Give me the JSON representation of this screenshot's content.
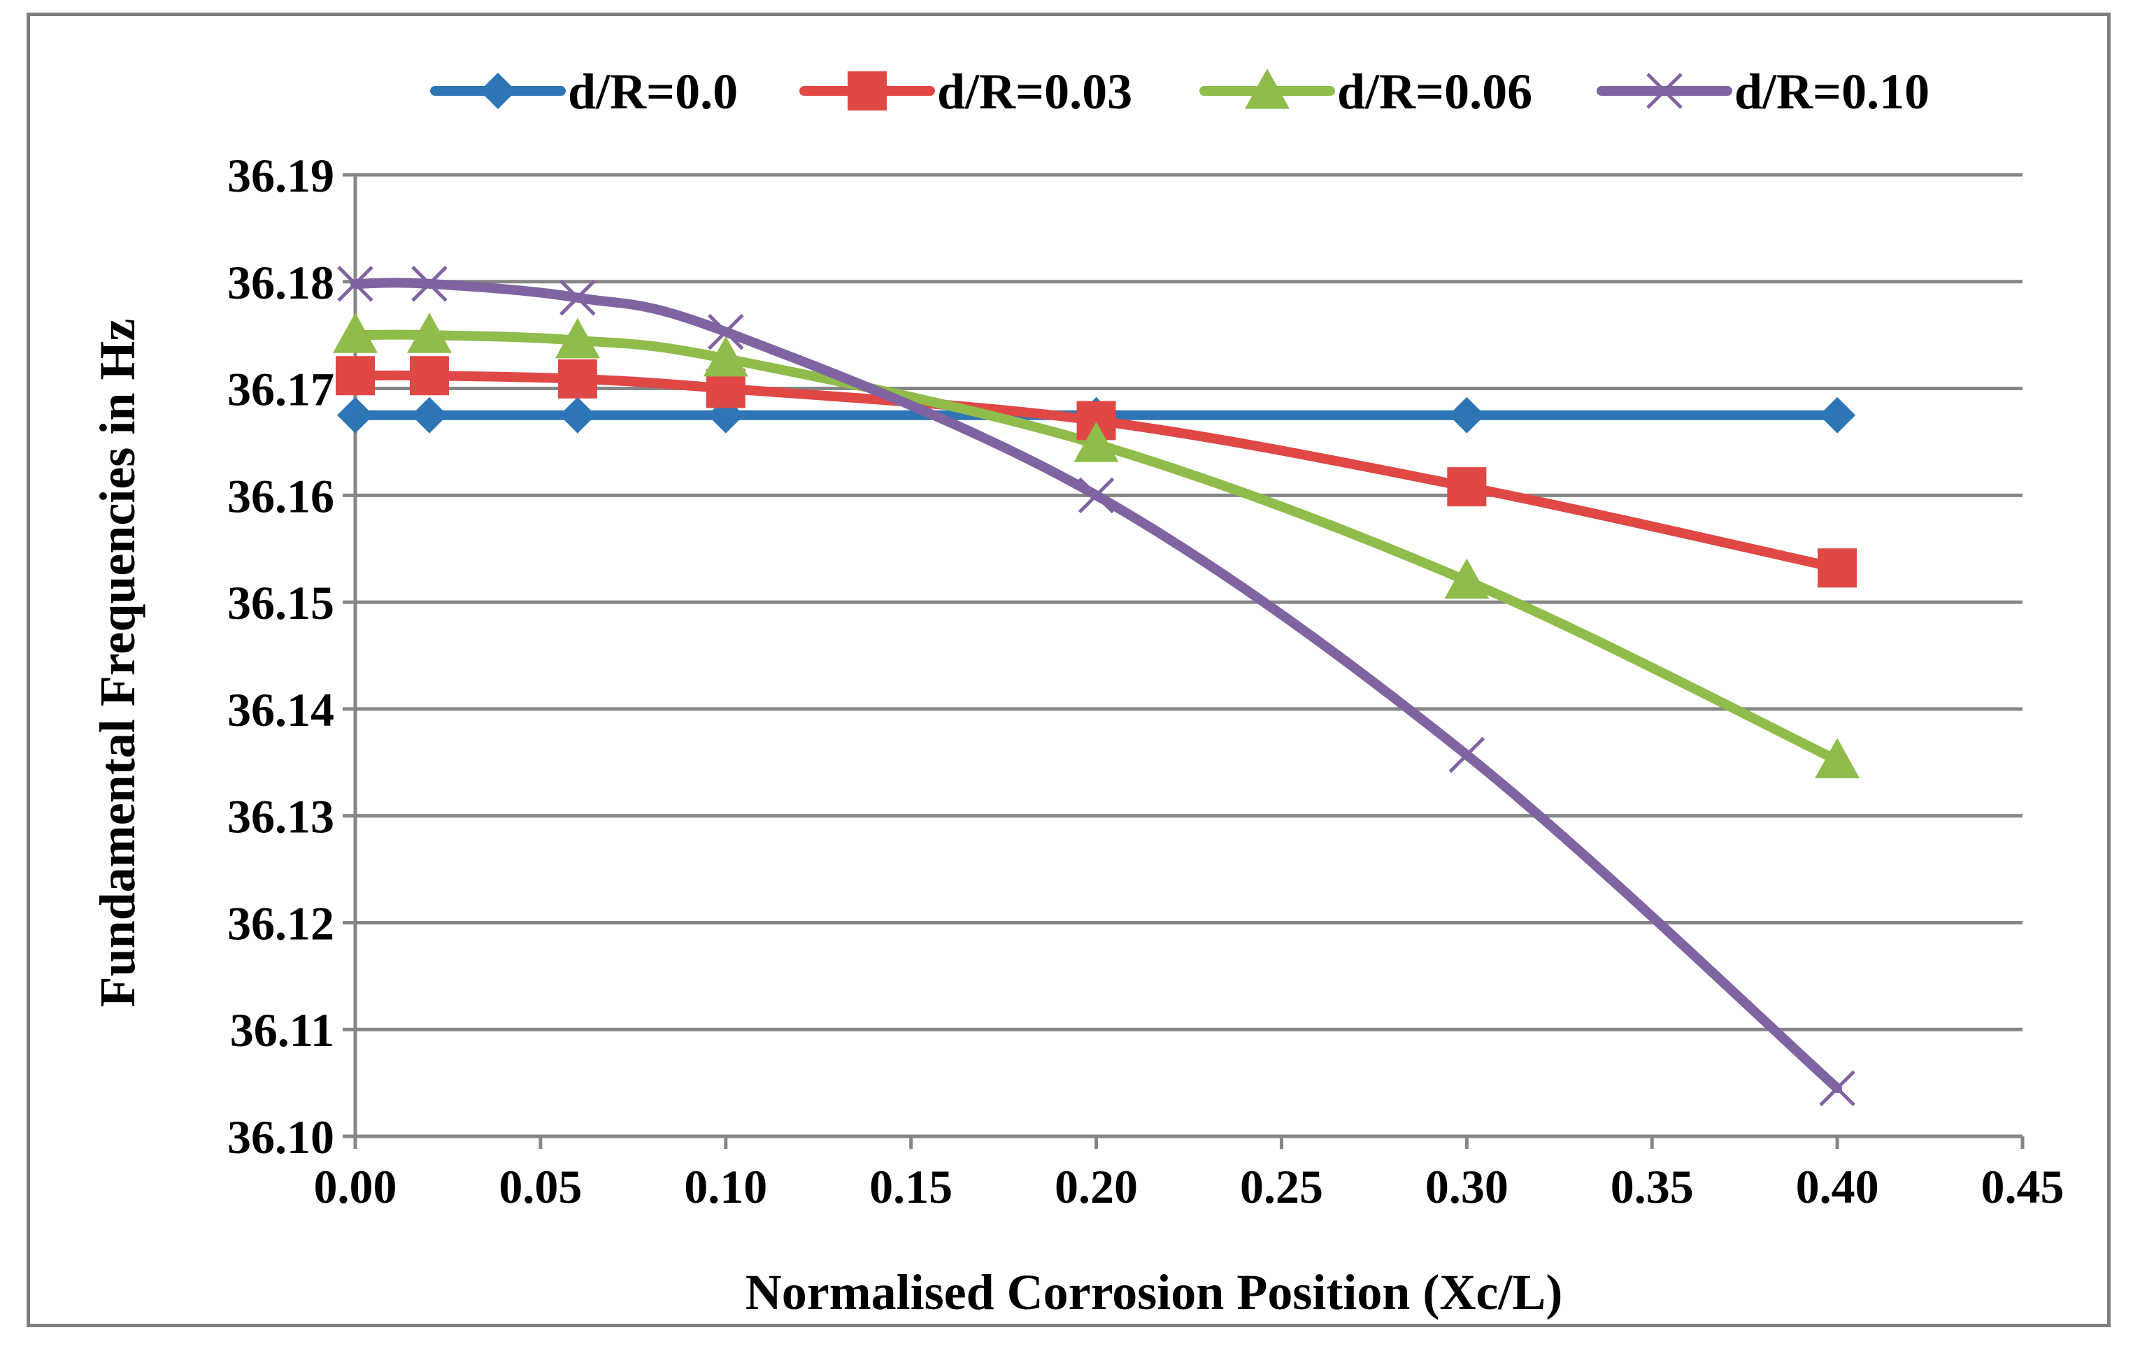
{
  "chart_data": {
    "type": "line",
    "title": "",
    "xlabel": "Normalised Corrosion Position (Xc/L)",
    "ylabel": "Fundamental Frequencies in Hz",
    "xlim": [
      0,
      0.45
    ],
    "ylim": [
      36.1,
      36.19
    ],
    "grid": true,
    "legend_position": "top",
    "x_ticks": [
      "0.00",
      "0.05",
      "0.10",
      "0.15",
      "0.20",
      "0.25",
      "0.30",
      "0.35",
      "0.40",
      "0.45"
    ],
    "y_ticks": [
      "36.10",
      "36.11",
      "36.12",
      "36.13",
      "36.14",
      "36.15",
      "36.16",
      "36.17",
      "36.18",
      "36.19"
    ],
    "x": [
      0.0,
      0.02,
      0.06,
      0.1,
      0.2,
      0.3,
      0.4
    ],
    "series": [
      {
        "name": "d/R=0.0",
        "color": "#2e75b6",
        "marker": "diamond",
        "values": [
          36.1675,
          36.1675,
          36.1675,
          36.1675,
          36.1675,
          36.1675,
          36.1675
        ]
      },
      {
        "name": "d/R=0.03",
        "color": "#e04846",
        "marker": "square",
        "values": [
          36.1712,
          36.1712,
          36.1709,
          36.17,
          36.167,
          36.1608,
          36.1532
        ]
      },
      {
        "name": "d/R=0.06",
        "color": "#8fbc4a",
        "marker": "triangle",
        "values": [
          36.175,
          36.175,
          36.1745,
          36.1728,
          36.1648,
          36.152,
          36.1352
        ]
      },
      {
        "name": "d/R=0.10",
        "color": "#8064a2",
        "marker": "x",
        "values": [
          36.1798,
          36.1798,
          36.1785,
          36.1753,
          36.16,
          36.1357,
          36.1045
        ]
      }
    ]
  }
}
